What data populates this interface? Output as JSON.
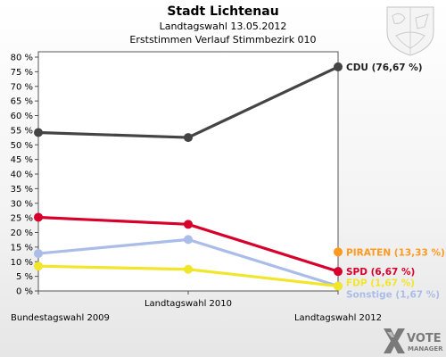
{
  "header": {
    "title": "Stadt Lichtenau",
    "subtitle1": "Landtagswahl 13.05.2012",
    "subtitle2": "Erststimmen Verlauf Stimmbezirk 010"
  },
  "branding": {
    "logo_text_1": "VOTE",
    "logo_text_2": "MANAGER",
    "crest_icon": "coat-of-arms-icon"
  },
  "chart_data": {
    "type": "line",
    "title": "Stadt Lichtenau",
    "subtitle": "Landtagswahl 13.05.2012 / Erststimmen Verlauf Stimmbezirk 010",
    "xlabel": "",
    "ylabel": "",
    "x": [
      "Bundestagswahl 2009",
      "Landtagswahl 2010",
      "Landtagswahl 2012"
    ],
    "ylim": [
      0,
      80
    ],
    "yticks": [
      0,
      5,
      10,
      15,
      20,
      25,
      30,
      35,
      40,
      45,
      50,
      55,
      60,
      65,
      70,
      75,
      80
    ],
    "ytick_suffix": " %",
    "grid": false,
    "series": [
      {
        "name": "CDU",
        "color": "#444444",
        "values": [
          54.2,
          52.5,
          76.67
        ],
        "end_label": "CDU (76,67 %)"
      },
      {
        "name": "SPD",
        "color": "#d7002c",
        "values": [
          25.2,
          22.8,
          6.67
        ],
        "end_label": "SPD (6,67 %)"
      },
      {
        "name": "Sonstige",
        "color": "#aabde8",
        "values": [
          12.8,
          17.6,
          1.67
        ],
        "end_label": "Sonstige (1,67 %)"
      },
      {
        "name": "FDP",
        "color": "#f2e62a",
        "values": [
          8.5,
          7.4,
          1.67
        ],
        "end_label": "FDP (1,67 %)"
      },
      {
        "name": "PIRATEN",
        "color": "#ff9a1e",
        "values": [
          null,
          null,
          13.33
        ],
        "end_label": "PIRATEN (13,33 %)"
      }
    ]
  }
}
